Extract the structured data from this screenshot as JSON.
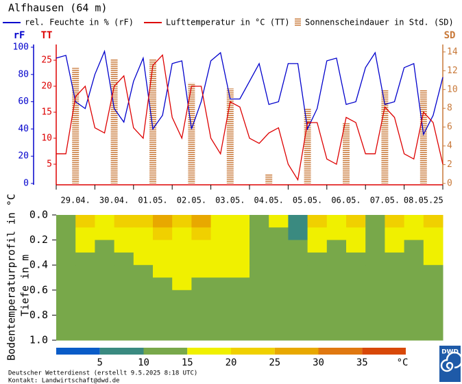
{
  "chart_data": [
    {
      "type": "line",
      "title": "Alfhausen (64 m)",
      "x": [
        0,
        0.25,
        0.5,
        0.75,
        1,
        1.25,
        1.5,
        1.75,
        2,
        2.25,
        2.5,
        2.75,
        3,
        3.25,
        3.5,
        3.75,
        4,
        4.25,
        4.5,
        4.75,
        5,
        5.25,
        5.5,
        5.75,
        6,
        6.25,
        6.5,
        6.75,
        7,
        7.25,
        7.5,
        7.75,
        8,
        8.25,
        8.5,
        8.75,
        9,
        9.25,
        9.5,
        9.75,
        10
      ],
      "xlim": [
        0,
        10
      ],
      "categories": [
        "29.04.",
        "30.04.",
        "01.05.",
        "02.05.",
        "03.05.",
        "04.05.",
        "05.05.",
        "06.05.",
        "07.05.",
        "08.05.25"
      ],
      "series": [
        {
          "name": "rel. Feuchte in % (rF)",
          "color": "#0000cc",
          "axis": "y",
          "values": [
            92,
            94,
            60,
            55,
            80,
            97,
            55,
            45,
            75,
            92,
            40,
            50,
            88,
            90,
            40,
            60,
            90,
            96,
            62,
            62,
            75,
            88,
            58,
            60,
            88,
            88,
            40,
            55,
            90,
            92,
            58,
            60,
            85,
            96,
            58,
            60,
            85,
            88,
            36,
            50,
            78
          ]
        },
        {
          "name": "Lufttemperatur in °C (TT)",
          "color": "#dd0000",
          "axis": "y2",
          "values": [
            7,
            7,
            18,
            20,
            12,
            11,
            20,
            22,
            12,
            10,
            24,
            26,
            14,
            10,
            20,
            20,
            10,
            7,
            17,
            16,
            10,
            9,
            11,
            12,
            5,
            2,
            13,
            13,
            6,
            5,
            14,
            13,
            7,
            7,
            16,
            14,
            7,
            6,
            15,
            13,
            5
          ]
        },
        {
          "name": "Sonnenscheindauer in Std. (SD)",
          "color": "#c87838",
          "axis": "y3",
          "type": "bar",
          "values": [
            12.3,
            13.2,
            13.3,
            10.7,
            10.1,
            1,
            8,
            6.4,
            10,
            10
          ]
        }
      ],
      "ylabel": "rF",
      "ylim": [
        0,
        100
      ],
      "yticks": [
        0,
        20,
        40,
        60,
        80,
        100
      ],
      "y2label": "TT",
      "y2lim": [
        1.3,
        27.5
      ],
      "y2ticks": [
        5,
        10,
        15,
        20,
        25
      ],
      "y3label": "SD",
      "y3lim": [
        0,
        14.5
      ],
      "y3ticks": [
        0,
        2,
        4,
        6,
        8,
        10,
        12,
        14
      ]
    },
    {
      "type": "heatmap",
      "ylabel": [
        "Bodentemperaturprofil in °C",
        "Tiefe in m"
      ],
      "x_edges": [
        0,
        0.5,
        1,
        1.5,
        2,
        2.5,
        3,
        3.5,
        4,
        4.5,
        5,
        5.5,
        6,
        6.5,
        7,
        7.5,
        8,
        8.5,
        9,
        9.5,
        10
      ],
      "y_edges": [
        0,
        0.1,
        0.2,
        0.3,
        0.4,
        0.5,
        0.6,
        1.0
      ],
      "values": [
        [
          12,
          22,
          17,
          22,
          22,
          27,
          22,
          27,
          17,
          17,
          12,
          17,
          8,
          22,
          17,
          22,
          12,
          22,
          17,
          22
        ],
        [
          12,
          17,
          17,
          17,
          17,
          22,
          17,
          22,
          17,
          17,
          12,
          12,
          8,
          17,
          17,
          17,
          12,
          17,
          17,
          17
        ],
        [
          12,
          17,
          12,
          17,
          17,
          17,
          17,
          17,
          17,
          17,
          12,
          12,
          12,
          17,
          12,
          17,
          12,
          17,
          12,
          17
        ],
        [
          12,
          12,
          12,
          12,
          17,
          17,
          17,
          17,
          17,
          17,
          12,
          12,
          12,
          12,
          12,
          12,
          12,
          12,
          12,
          17
        ],
        [
          12,
          12,
          12,
          12,
          12,
          17,
          17,
          17,
          17,
          17,
          12,
          12,
          12,
          12,
          12,
          12,
          12,
          12,
          12,
          12
        ],
        [
          12,
          12,
          12,
          12,
          12,
          12,
          17,
          12,
          12,
          12,
          12,
          12,
          12,
          12,
          12,
          12,
          12,
          12,
          12,
          12
        ],
        [
          12,
          12,
          12,
          12,
          12,
          12,
          12,
          12,
          12,
          12,
          12,
          12,
          12,
          12,
          12,
          12,
          12,
          12,
          12,
          12
        ]
      ],
      "ylim": [
        0,
        1.0
      ],
      "yticks": [
        {
          "value": 0,
          "label": "0.0"
        },
        {
          "value": 0.2,
          "label": "0.2"
        },
        {
          "value": 0.4,
          "label": "0.4"
        },
        {
          "value": 0.6,
          "label": "0.6"
        },
        {
          "value": 0.8,
          "label": "0.8"
        },
        {
          "value": 1.0,
          "label": "1.0"
        }
      ],
      "colorbar": {
        "bins": [
          0,
          5,
          10,
          15,
          20,
          25,
          30,
          35,
          40
        ],
        "colors": [
          "#0a5cc8",
          "#3a8a80",
          "#78a84a",
          "#f0f000",
          "#f0d000",
          "#e8a800",
          "#e07810",
          "#d84808"
        ],
        "ticks": [
          5,
          10,
          15,
          20,
          25,
          30,
          35
        ],
        "unit": "°C"
      }
    }
  ],
  "footer": [
    "Deutscher Wetterdienst (erstellt 9.5.2025 8:18 UTC)",
    "Kontakt: Landwirtschaft@dwd.de"
  ],
  "logo": "DWD"
}
